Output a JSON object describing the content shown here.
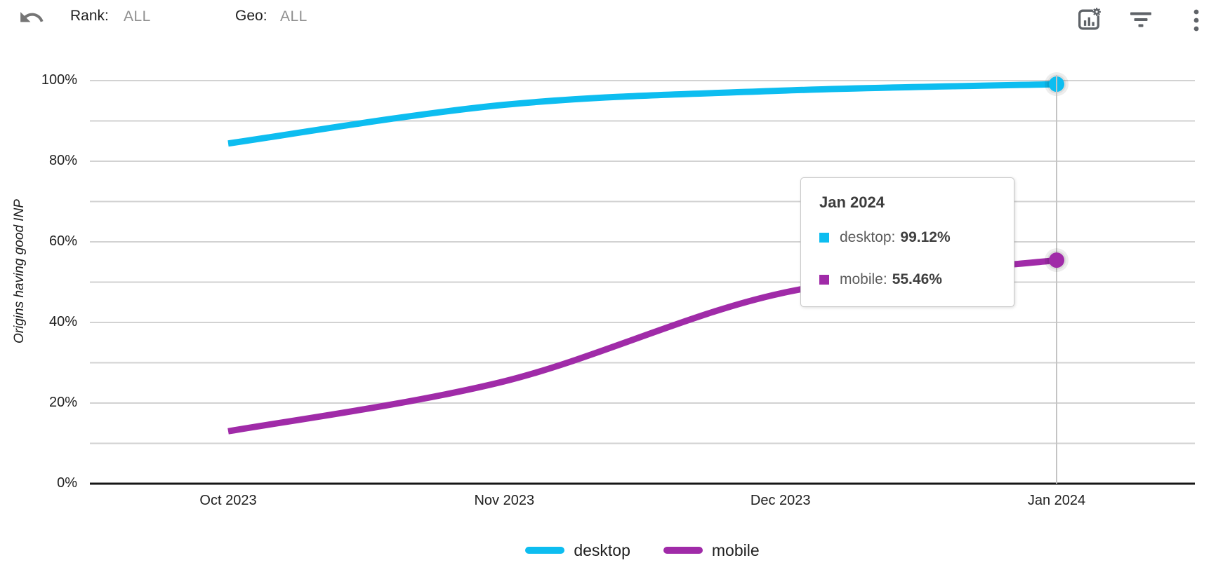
{
  "toolbar": {
    "undo_icon": "undo-arrow",
    "rank_label": "Rank:",
    "rank_value": "ALL",
    "geo_label": "Geo:",
    "geo_value": "ALL",
    "action_icons": [
      "chart-settings-icon",
      "filter-icon",
      "kebab-menu-icon"
    ],
    "icon_color": "#5f6368"
  },
  "chart_data": {
    "type": "line",
    "title": "",
    "ylabel": "Origins having good INP",
    "xlabel": "",
    "x": [
      "Oct 2023",
      "Nov 2023",
      "Dec 2023",
      "Jan 2024"
    ],
    "series": [
      {
        "name": "desktop",
        "color": "#0DBDF0",
        "values": [
          84.4,
          94.0,
          97.5,
          99.12
        ]
      },
      {
        "name": "mobile",
        "color": "#A02BA8",
        "values": [
          13.0,
          25.4,
          47.2,
          55.46
        ]
      }
    ],
    "ylim": [
      0,
      100
    ],
    "yticks": [
      0,
      20,
      40,
      60,
      80,
      100
    ],
    "ytick_labels": [
      "0%",
      "20%",
      "40%",
      "60%",
      "80%",
      "100%"
    ],
    "minor_gridline_step_pct": 10,
    "grid": true,
    "gridline_color": "#d2d2d2",
    "axis_color": "#161616",
    "crosshair_color": "#c4c4c4",
    "legend_position": "bottom",
    "hovered_column": "Jan 2024"
  },
  "tooltip": {
    "title": "Jan 2024",
    "rows": [
      {
        "label": "desktop",
        "value": "99.12%",
        "color": "#0DBDF0"
      },
      {
        "label": "mobile",
        "value": "55.46%",
        "color": "#A02BA8"
      }
    ]
  }
}
